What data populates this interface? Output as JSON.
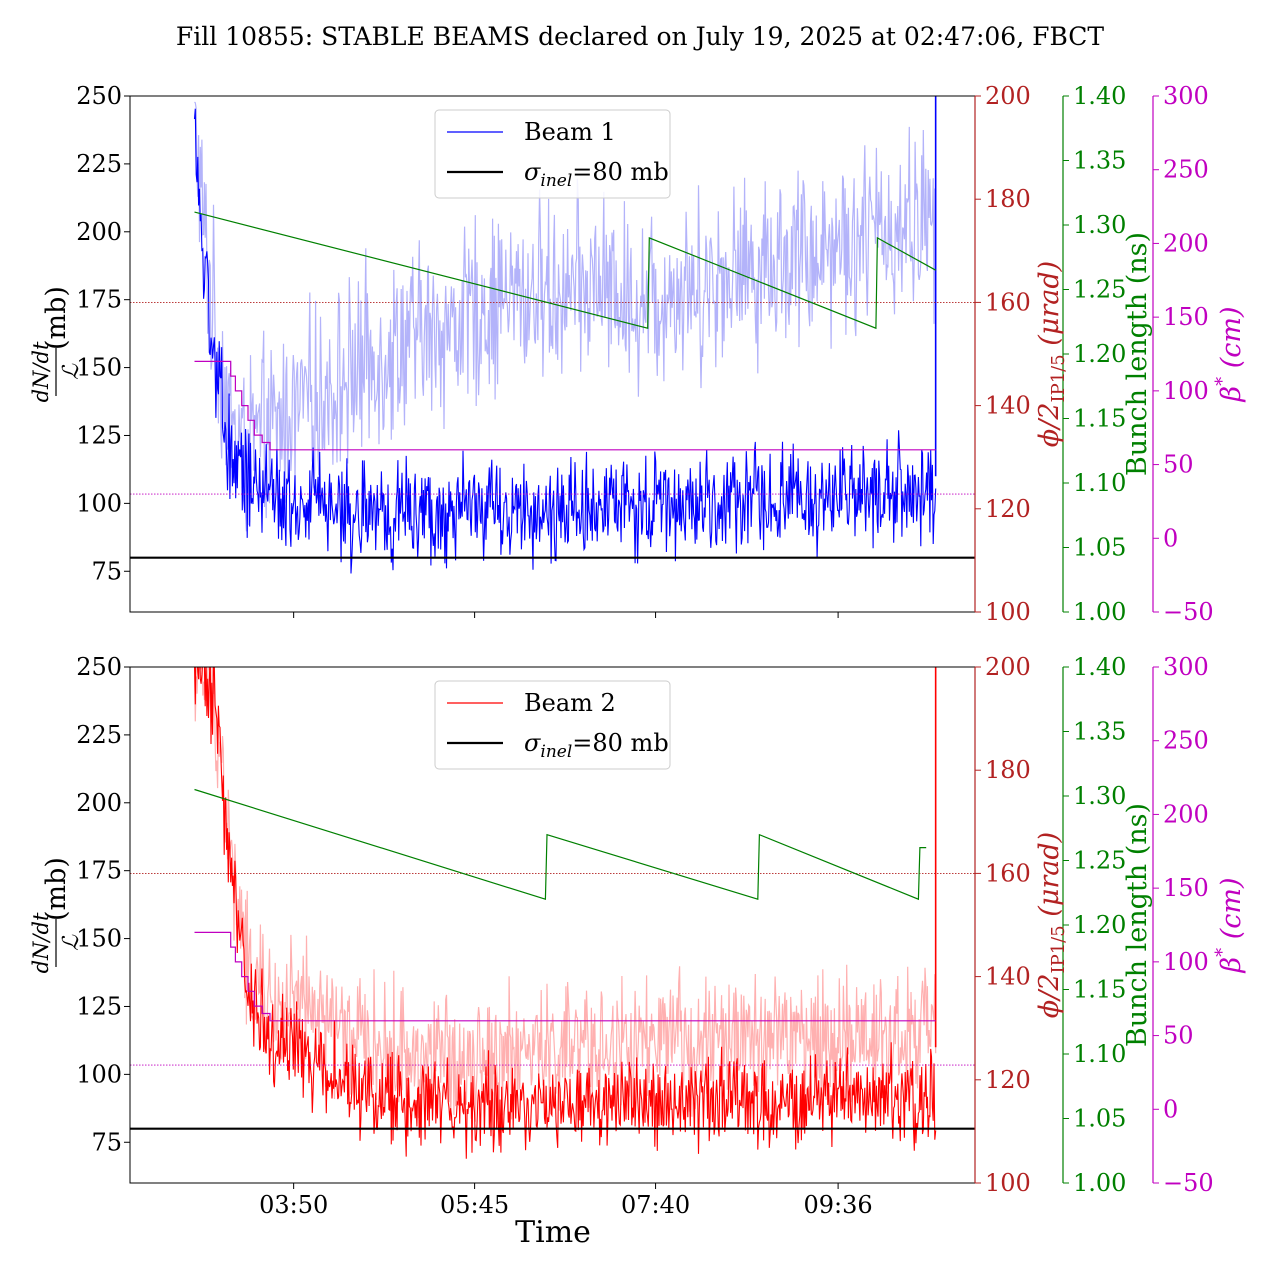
{
  "title": "Fill 10855: STABLE BEAMS declared on July 19, 2025 at 02:47:06, FBCT",
  "xlabel": "Time",
  "colors": {
    "beam1": "#0000ff",
    "beam1_light": "#b3b3fa",
    "beam2": "#ff0000",
    "beam2_light": "#ffb0b0",
    "reference": "#000000",
    "angle": "#b22222",
    "bunch": "#008000",
    "beta": "#c000c0"
  },
  "chart_data": [
    {
      "type": "line",
      "panel": "top",
      "legend": {
        "placement": "top-center",
        "entries": [
          "Beam 1",
          "σinel=80 mb"
        ]
      },
      "x_time_range": [
        "02:47",
        "10:38"
      ],
      "x_ticks": [
        "03:50",
        "05:45",
        "07:40",
        "09:36"
      ],
      "x_ticks_visible": false,
      "y_left": {
        "label_numerator": "dN/dt",
        "label_denominator": "ℒ",
        "label_unit": "(mb)",
        "range": [
          60,
          250
        ],
        "ticks": [
          "75",
          "100",
          "125",
          "150",
          "175",
          "200",
          "225",
          "250"
        ]
      },
      "y_angle": {
        "label": "ϕ/2",
        "label_sub": "IP1/5",
        "label_unit": "(μrad)",
        "range": [
          100,
          200
        ],
        "ticks": [
          "100",
          "120",
          "140",
          "160",
          "180",
          "200"
        ]
      },
      "y_bunch": {
        "label": "Bunch length (ns)",
        "range": [
          1.0,
          1.4
        ],
        "ticks": [
          "1.00",
          "1.05",
          "1.10",
          "1.15",
          "1.20",
          "1.25",
          "1.30",
          "1.35",
          "1.40"
        ]
      },
      "y_beta": {
        "label": "β",
        "label_sup": "*",
        "label_unit": "(cm)",
        "range": [
          -50,
          300
        ],
        "ticks": [
          "−50",
          "0",
          "50",
          "100",
          "150",
          "200",
          "250",
          "300"
        ]
      },
      "series": [
        {
          "name": "Beam 1",
          "axis": "left",
          "style": "noisy",
          "time": [
            "02:47",
            "02:52",
            "03:00",
            "03:10",
            "03:20",
            "03:35",
            "03:50",
            "04:10",
            "04:30",
            "05:00",
            "05:30",
            "06:00",
            "06:30",
            "07:00",
            "07:30",
            "08:00",
            "08:30",
            "09:00",
            "09:30",
            "10:00",
            "10:30"
          ],
          "smooth": [
            240,
            195,
            150,
            120,
            108,
            103,
            100,
            100,
            97,
            96,
            96,
            97,
            97,
            98,
            98,
            99,
            100,
            101,
            102,
            103,
            104
          ],
          "noise": 16,
          "light_smooth": [
            240,
            205,
            165,
            130,
            120,
            125,
            135,
            140,
            150,
            160,
            165,
            175,
            178,
            180,
            175,
            180,
            185,
            190,
            195,
            200,
            205
          ],
          "light_noise": 30
        },
        {
          "name": "σinel=80 mb",
          "axis": "left",
          "style": "constant",
          "value": 80
        },
        {
          "name": "crossing angle",
          "axis": "angle",
          "style": "constant",
          "value": 160,
          "dotted": true
        },
        {
          "name": "beta* reference",
          "axis": "beta",
          "style": "constant",
          "value": 30,
          "dotted": true
        },
        {
          "name": "beta*",
          "axis": "beta",
          "style": "step",
          "time": [
            "02:47",
            "03:07",
            "03:10",
            "03:13",
            "03:17",
            "03:21",
            "03:25",
            "03:30",
            "03:35",
            "10:38"
          ],
          "values": [
            120,
            120,
            110,
            100,
            90,
            80,
            70,
            65,
            60,
            60
          ]
        },
        {
          "name": "Bunch length",
          "axis": "bunch",
          "style": "sawtooth",
          "time": [
            "02:47",
            "07:35",
            "07:35",
            "07:36",
            "10:00",
            "10:00",
            "10:01",
            "10:38"
          ],
          "values": [
            1.31,
            1.22,
            1.22,
            1.29,
            1.22,
            1.22,
            1.29,
            1.265
          ]
        }
      ]
    },
    {
      "type": "line",
      "panel": "bottom",
      "legend": {
        "placement": "top-center",
        "entries": [
          "Beam 2",
          "σinel=80 mb"
        ]
      },
      "x_time_range": [
        "02:47",
        "10:38"
      ],
      "x_ticks": [
        "03:50",
        "05:45",
        "07:40",
        "09:36"
      ],
      "x_ticks_visible": true,
      "y_left": {
        "label_numerator": "dN/dt",
        "label_denominator": "ℒ",
        "label_unit": "(mb)",
        "range": [
          60,
          250
        ],
        "ticks": [
          "75",
          "100",
          "125",
          "150",
          "175",
          "200",
          "225",
          "250"
        ]
      },
      "y_angle": {
        "label": "ϕ/2",
        "label_sub": "IP1/5",
        "label_unit": "(μrad)",
        "range": [
          100,
          200
        ],
        "ticks": [
          "100",
          "120",
          "140",
          "160",
          "180",
          "200"
        ]
      },
      "y_bunch": {
        "label": "Bunch length (ns)",
        "range": [
          1.0,
          1.4
        ],
        "ticks": [
          "1.00",
          "1.05",
          "1.10",
          "1.15",
          "1.20",
          "1.25",
          "1.30",
          "1.35",
          "1.40"
        ]
      },
      "y_beta": {
        "label": "β",
        "label_sup": "*",
        "label_unit": "(cm)",
        "range": [
          -50,
          300
        ],
        "ticks": [
          "−50",
          "0",
          "50",
          "100",
          "150",
          "200",
          "250",
          "300"
        ]
      },
      "series": [
        {
          "name": "Beam 2",
          "axis": "left",
          "style": "noisy",
          "time": [
            "02:47",
            "03:00",
            "03:10",
            "03:20",
            "03:35",
            "03:50",
            "04:10",
            "04:30",
            "05:00",
            "05:30",
            "06:00",
            "06:30",
            "07:00",
            "07:30",
            "08:00",
            "08:30",
            "09:00",
            "09:30",
            "10:00",
            "10:30"
          ],
          "smooth": [
            250,
            235,
            175,
            135,
            115,
            108,
            103,
            95,
            90,
            88,
            88,
            89,
            89,
            90,
            90,
            90,
            91,
            91,
            92,
            92
          ],
          "noise": 14,
          "light_smooth": [
            250,
            240,
            180,
            140,
            125,
            125,
            120,
            112,
            108,
            106,
            108,
            108,
            110,
            110,
            112,
            112,
            114,
            114,
            115,
            116
          ],
          "light_noise": 22
        },
        {
          "name": "σinel=80 mb",
          "axis": "left",
          "style": "constant",
          "value": 80
        },
        {
          "name": "crossing angle",
          "axis": "angle",
          "style": "constant",
          "value": 160,
          "dotted": true
        },
        {
          "name": "beta* reference",
          "axis": "beta",
          "style": "constant",
          "value": 30,
          "dotted": true
        },
        {
          "name": "beta*",
          "axis": "beta",
          "style": "step",
          "time": [
            "02:47",
            "03:07",
            "03:10",
            "03:13",
            "03:17",
            "03:21",
            "03:25",
            "03:30",
            "03:35",
            "10:38"
          ],
          "values": [
            120,
            120,
            110,
            100,
            90,
            80,
            70,
            65,
            60,
            60
          ]
        },
        {
          "name": "Bunch length",
          "axis": "bunch",
          "style": "sawtooth",
          "time": [
            "02:47",
            "06:30",
            "06:30",
            "06:31",
            "08:45",
            "08:45",
            "08:46",
            "10:27",
            "10:27",
            "10:28",
            "10:32"
          ],
          "values": [
            1.305,
            1.22,
            1.22,
            1.27,
            1.22,
            1.22,
            1.27,
            1.22,
            1.22,
            1.26,
            1.26
          ]
        }
      ]
    }
  ]
}
